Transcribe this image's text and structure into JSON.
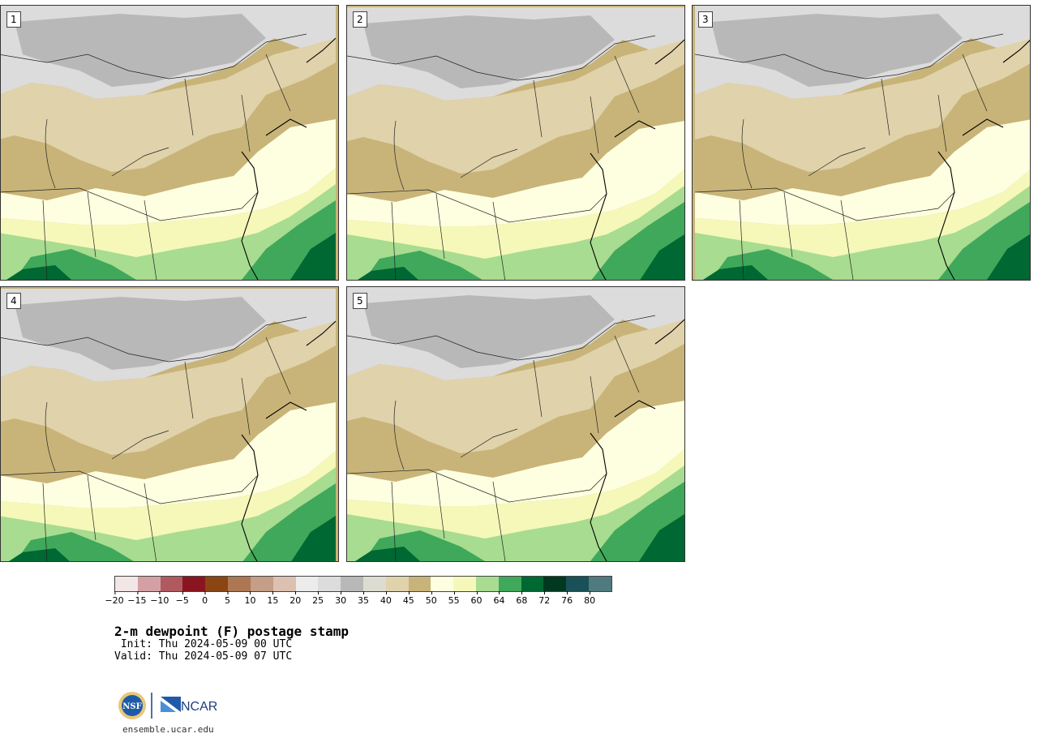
{
  "panels": [
    {
      "label": "1"
    },
    {
      "label": "2"
    },
    {
      "label": "3"
    },
    {
      "label": "4"
    },
    {
      "label": "5"
    }
  ],
  "colorbar": {
    "colors": [
      "#f2e6e6",
      "#d4a0a5",
      "#b05a60",
      "#8a1520",
      "#8b4513",
      "#ad7752",
      "#c49e86",
      "#dcc0b0",
      "#ececec",
      "#dcdcdc",
      "#b8b8b8",
      "#dcdcd0",
      "#e0d2aa",
      "#c8b478",
      "#fefee0",
      "#f5f8b8",
      "#a8dc90",
      "#40a85a",
      "#006832",
      "#003820",
      "#1a5058",
      "#4f7a7e"
    ],
    "ticks": [
      "-20",
      "-15",
      "-10",
      "-5",
      "0",
      "5",
      "10",
      "15",
      "20",
      "25",
      "30",
      "35",
      "40",
      "45",
      "50",
      "55",
      "60",
      "64",
      "68",
      "72",
      "76",
      "80"
    ]
  },
  "title": "2-m dewpoint (F) postage stamp",
  "init": " Init: Thu 2024-05-09 00 UTC",
  "valid": "Valid: Thu 2024-05-09 07 UTC",
  "logo_text": "NCAR",
  "logo_nsf": "NSF",
  "site": "ensemble.ucar.edu"
}
